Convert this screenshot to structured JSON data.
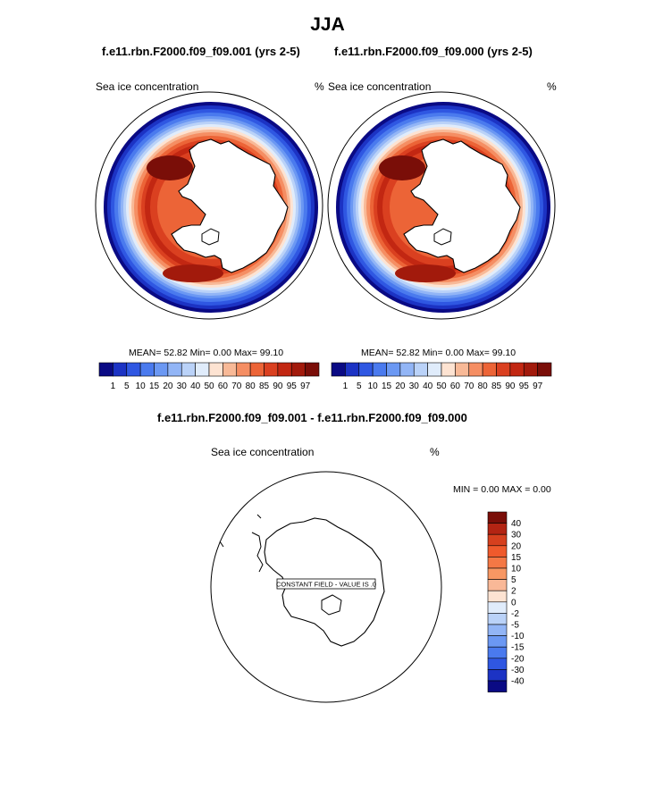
{
  "page_title": "JJA",
  "panels": [
    {
      "case_name": "f.e11.rbn.F2000.f09_f09.001 (yrs 2-5)",
      "field_label": "Sea ice concentration",
      "units": "%",
      "stats_text": "MEAN=  52.82  Min=   0.00  Max=  99.10"
    },
    {
      "case_name": "f.e11.rbn.F2000.f09_f09.000 (yrs 2-5)",
      "field_label": "Sea ice concentration",
      "units": "%",
      "stats_text": "MEAN=  52.82  Min=   0.00  Max=  99.10"
    }
  ],
  "diff_panel": {
    "title": "f.e11.rbn.F2000.f09_f09.001 - f.e11.rbn.F2000.f09_f09.000",
    "field_label": "Sea ice concentration",
    "units": "%",
    "minmax_text": "MIN =   0.00 MAX =   0.00",
    "constant_field_text": "CONSTANT FIELD - VALUE IS .0"
  },
  "colorbar_main": {
    "labels": [
      "1",
      "5",
      "10",
      "15",
      "20",
      "30",
      "40",
      "50",
      "60",
      "70",
      "80",
      "85",
      "90",
      "95",
      "97"
    ],
    "colors": [
      "#0a0a84",
      "#1c33c4",
      "#2f57e2",
      "#4a7aee",
      "#6b98f3",
      "#92b5f6",
      "#bad2f8",
      "#e0ecfb",
      "#fde3d2",
      "#f8b997",
      "#f58e63",
      "#ec6437",
      "#da4020",
      "#c22712",
      "#a21a0c",
      "#7a0e08"
    ]
  },
  "colorbar_diff": {
    "labels": [
      "40",
      "30",
      "20",
      "15",
      "10",
      "5",
      "2",
      "0",
      "-2",
      "-5",
      "-10",
      "-15",
      "-20",
      "-30",
      "-40"
    ],
    "colors": [
      "#7a0e08",
      "#b32413",
      "#d6401e",
      "#ef5a2c",
      "#f47845",
      "#f79763",
      "#f9b897",
      "#fde3d2",
      "#e0ecfb",
      "#bad2f8",
      "#92b5f6",
      "#6b98f3",
      "#4a7aee",
      "#2f57e2",
      "#1c33c4",
      "#0a0a84"
    ]
  }
}
